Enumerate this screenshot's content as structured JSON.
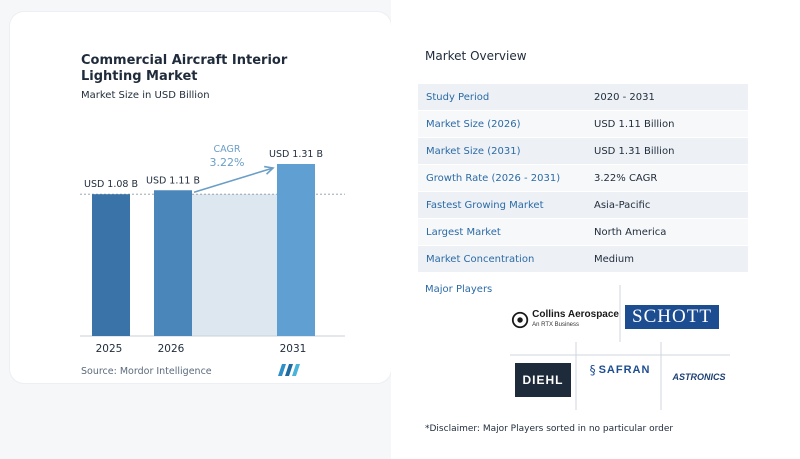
{
  "left_panel": {
    "title": "Commercial Aircraft Interior Lighting Market",
    "subtitle": "Market Size in USD Billion",
    "source": "Source:  Mordor Intelligence",
    "logo_icon": "mordor-intelligence-logo"
  },
  "chart_data": {
    "type": "bar",
    "title": "Commercial Aircraft Interior Lighting Market",
    "subtitle": "Market Size in USD Billion",
    "categories": [
      "2025",
      "2026",
      "2031"
    ],
    "values": [
      1.08,
      1.11,
      1.31
    ],
    "value_labels": [
      "USD 1.08 B",
      "USD 1.11 B",
      "USD 1.31 B"
    ],
    "cagr_label": "CAGR",
    "cagr_value": "3.22%",
    "bar_colors": [
      "#3a73a8",
      "#4a86b9",
      "#5f9fd1"
    ],
    "shade_color": "#dde7f0",
    "xlabel": "",
    "ylabel": ""
  },
  "overview": {
    "title": "Market Overview",
    "rows": [
      {
        "key": "Study Period",
        "value": "2020 - 2031"
      },
      {
        "key": "Market Size (2026)",
        "value": "USD 1.11 Billion"
      },
      {
        "key": "Market Size (2031)",
        "value": "USD 1.31 Billion"
      },
      {
        "key": "Growth Rate (2026 - 2031)",
        "value": "3.22% CAGR"
      },
      {
        "key": "Fastest Growing Market",
        "value": "Asia-Pacific"
      },
      {
        "key": "Largest Market",
        "value": "North America"
      },
      {
        "key": "Market Concentration",
        "value": "Medium"
      }
    ]
  },
  "players": {
    "title": "Major Players",
    "logos": [
      {
        "name": "Collins Aerospace",
        "sub": "An RTX Business",
        "icon": "collins-aerospace-logo"
      },
      {
        "name": "SCHOTT",
        "icon": "schott-logo"
      },
      {
        "name": "DIEHL",
        "icon": "diehl-logo"
      },
      {
        "name": "SAFRAN",
        "icon": "safran-logo"
      },
      {
        "name": "ASTRONICS",
        "icon": "astronics-logo"
      }
    ],
    "disclaimer": "*Disclaimer: Major Players sorted in no particular order"
  }
}
